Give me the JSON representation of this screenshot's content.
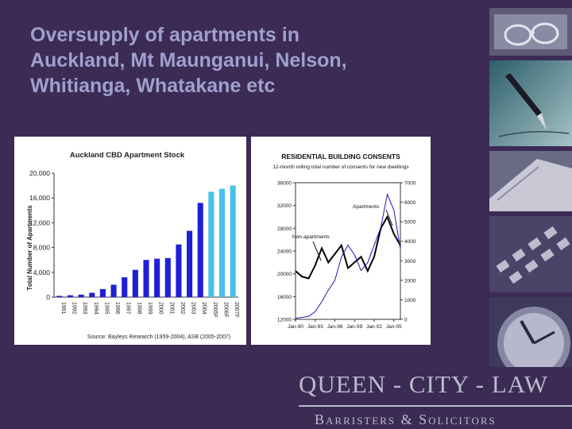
{
  "slide": {
    "title_lines": [
      "Oversupply of apartments in",
      "Auckland, Mt Maunganui, Nelson,",
      "Whitianga, Whatakane etc"
    ]
  },
  "logo": {
    "main": "QUEEN - CITY - LAW",
    "sub": "Barristers & Solicitors"
  },
  "colors": {
    "background": "#3c2b55",
    "title": "#9fa0cf",
    "bar_actual": "#1f1fd6",
    "bar_forecast": "#45c2ec",
    "series_line": "#000000",
    "series_line_2": "#1a1ab0"
  },
  "chart_data": [
    {
      "type": "bar",
      "title": "Auckland CBD Apartment Stock",
      "ylabel": "Total Number of Apartments",
      "ylim": [
        0,
        20000
      ],
      "yticks": [
        "0",
        "4,000",
        "8,000",
        "12,000",
        "16,000",
        "20,000"
      ],
      "categories": [
        "1991",
        "1992",
        "1993",
        "1994",
        "1995",
        "1996",
        "1997",
        "1998",
        "1999",
        "2000",
        "2001",
        "2002",
        "2003",
        "2004",
        "2005F",
        "2006F",
        "2007F"
      ],
      "values": [
        200,
        300,
        400,
        700,
        1300,
        2000,
        3200,
        4400,
        6000,
        6200,
        6300,
        8500,
        10700,
        15200,
        17000,
        17500,
        18000
      ],
      "forecast_from_index": 14,
      "source": "Source: Bayleys Research (1959-2004), ASB (2005-2007)"
    },
    {
      "type": "line",
      "title": "RESIDENTIAL BUILDING CONSENTS",
      "subtitle": "12-month rolling total number of consents for new dwellings",
      "x_ticks": [
        "Jan-90",
        "Jan-93",
        "Jan-96",
        "Jan-99",
        "Jan-02",
        "Jan-05"
      ],
      "y_left_ticks": [
        "12000",
        "16000",
        "20000",
        "24000",
        "28000",
        "32000",
        "36000"
      ],
      "y_right_ticks": [
        "0",
        "1000",
        "2000",
        "3000",
        "4000",
        "5000",
        "6000",
        "7000"
      ],
      "ylim_left": [
        12000,
        36000
      ],
      "ylim_right": [
        0,
        7000
      ],
      "series": [
        {
          "name": "Non-apartments",
          "axis": "left",
          "x": [
            "Jan-90",
            "Jan-91",
            "Jan-92",
            "Jan-93",
            "Jan-94",
            "Jan-95",
            "Jan-96",
            "Jan-97",
            "Jan-98",
            "Jan-99",
            "Jan-00",
            "Jan-01",
            "Jan-02",
            "Jan-03",
            "Jan-04",
            "Jan-05",
            "Jan-06"
          ],
          "values": [
            20500,
            19500,
            19200,
            21500,
            24500,
            22000,
            23500,
            25000,
            21000,
            22000,
            23000,
            20500,
            23000,
            28000,
            30000,
            27000,
            25000
          ]
        },
        {
          "name": "Apartments",
          "axis": "right",
          "x": [
            "Jan-90",
            "Jan-91",
            "Jan-92",
            "Jan-93",
            "Jan-94",
            "Jan-95",
            "Jan-96",
            "Jan-97",
            "Jan-98",
            "Jan-99",
            "Jan-00",
            "Jan-01",
            "Jan-02",
            "Jan-03",
            "Jan-04",
            "Jan-05",
            "Jan-06"
          ],
          "values": [
            50,
            100,
            150,
            400,
            900,
            1500,
            2000,
            3200,
            3800,
            3300,
            2500,
            2900,
            3800,
            4700,
            6400,
            5600,
            3600
          ]
        }
      ]
    }
  ]
}
